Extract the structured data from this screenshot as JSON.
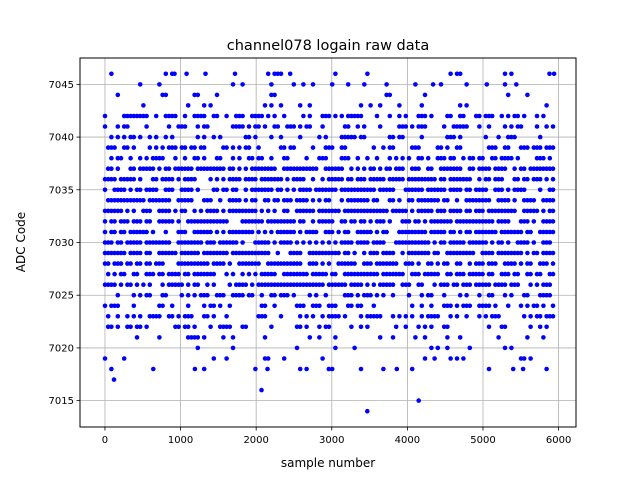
{
  "chart_data": {
    "type": "scatter",
    "title": "channel078 logain raw data",
    "xlabel": "sample number",
    "ylabel": "ADC Code",
    "xlim": [
      -330,
      6230
    ],
    "ylim": [
      7012.5,
      7047.5
    ],
    "xticks": [
      0,
      1000,
      2000,
      3000,
      4000,
      5000,
      6000
    ],
    "yticks": [
      7015,
      7020,
      7025,
      7030,
      7035,
      7040,
      7045
    ],
    "grid": true,
    "marker_color": "#0000ff",
    "n_samples": 6000,
    "x_range": [
      0,
      5950
    ],
    "y_levels_dense": [
      7026,
      7027,
      7028,
      7029,
      7030,
      7031,
      7032,
      7033,
      7034,
      7035,
      7036,
      7037
    ],
    "y_levels_frequent": [
      7022,
      7023,
      7024,
      7025,
      7038,
      7039,
      7040,
      7041,
      7042
    ],
    "y_levels_sparse": [
      7018,
      7019,
      7020,
      7021,
      7043,
      7044,
      7045,
      7046
    ],
    "outliers": [
      {
        "x": 120,
        "y": 7017
      },
      {
        "x": 2070,
        "y": 7016
      },
      {
        "x": 3470,
        "y": 7014
      },
      {
        "x": 4150,
        "y": 7015
      },
      {
        "x": 920,
        "y": 7046
      },
      {
        "x": 1080,
        "y": 7046
      },
      {
        "x": 1330,
        "y": 7046
      },
      {
        "x": 1720,
        "y": 7046
      },
      {
        "x": 2450,
        "y": 7046
      },
      {
        "x": 5880,
        "y": 7046
      },
      {
        "x": 5940,
        "y": 7046
      },
      {
        "x": 3430,
        "y": 7045
      },
      {
        "x": 4340,
        "y": 7045
      },
      {
        "x": 5050,
        "y": 7045
      },
      {
        "x": 5440,
        "y": 7045
      },
      {
        "x": 640,
        "y": 7018
      },
      {
        "x": 1190,
        "y": 7018
      },
      {
        "x": 2150,
        "y": 7018
      },
      {
        "x": 2960,
        "y": 7018
      },
      {
        "x": 3860,
        "y": 7018
      },
      {
        "x": 5400,
        "y": 7018
      },
      {
        "x": 5530,
        "y": 7018
      }
    ]
  }
}
